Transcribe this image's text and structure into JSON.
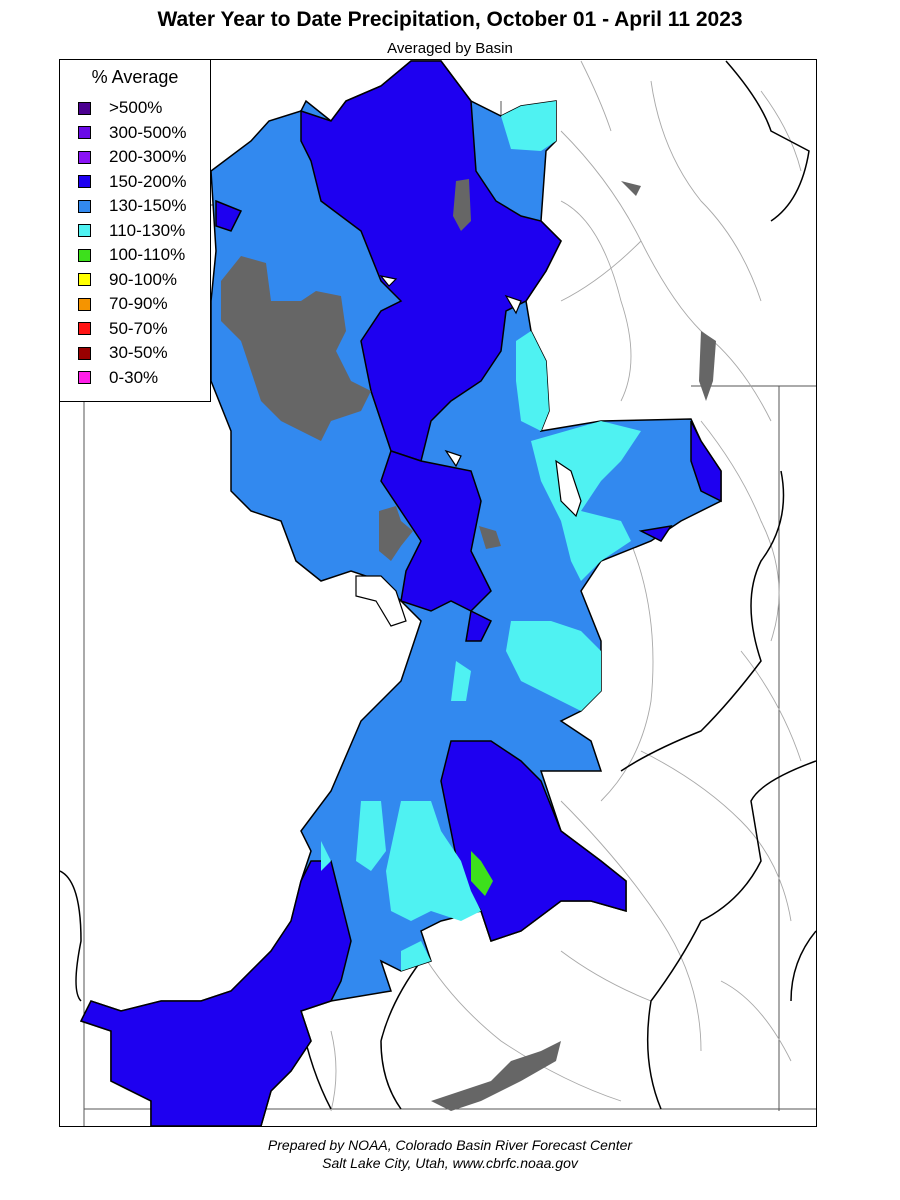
{
  "header": {
    "title": "Water Year to Date Precipitation, October 01  - April 11 2023",
    "subtitle": "Averaged by Basin"
  },
  "legend": {
    "title": "% Average",
    "items": [
      {
        "label": ">500%",
        "color": "#4b0090"
      },
      {
        "label": "300-500%",
        "color": "#6a0ae6"
      },
      {
        "label": "200-300%",
        "color": "#8a13f5"
      },
      {
        "label": "150-200%",
        "color": "#1e00f0"
      },
      {
        "label": "130-150%",
        "color": "#3289ef"
      },
      {
        "label": "110-130%",
        "color": "#4ff2f2"
      },
      {
        "label": "100-110%",
        "color": "#3de01c"
      },
      {
        "label": "90-100%",
        "color": "#ffff00"
      },
      {
        "label": "70-90%",
        "color": "#f59400"
      },
      {
        "label": "50-70%",
        "color": "#ff1414"
      },
      {
        "label": "30-50%",
        "color": "#990000"
      },
      {
        "label": "0-30%",
        "color": "#ff1ee8"
      }
    ]
  },
  "map_colors": {
    "lake": "#666666",
    "outline": "#000000",
    "state_line": "#555555",
    "rivers": "#a8a8a8"
  },
  "footer": {
    "line1": "Prepared by NOAA, Colorado Basin River Forecast Center",
    "line2": "Salt Lake City, Utah, www.cbrfc.noaa.gov"
  }
}
